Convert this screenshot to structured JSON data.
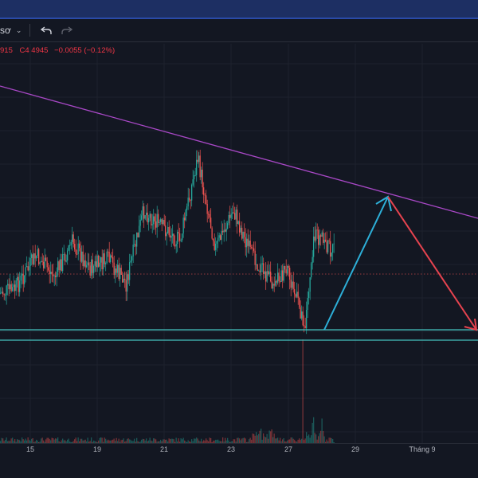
{
  "toolbar": {
    "interval_label": "sơ",
    "dropdown_icon": "chevron-down-icon",
    "undo_icon": "undo-icon",
    "redo_icon": "redo-icon"
  },
  "legend": {
    "prev_close_fragment": "915",
    "close_label": "C",
    "close_value": "4.4945",
    "change": "−0.0055 (−0.12%)",
    "color": "#f23645"
  },
  "colors": {
    "up": "#26a69a",
    "down": "#ef5350",
    "trendline": "#a948c7",
    "support": "#46c2c0",
    "arrow_up": "#2dafd8",
    "arrow_down": "#e6434f",
    "background": "#131722"
  },
  "xaxis": {
    "ticks": [
      "15",
      "19",
      "21",
      "23",
      "27",
      "29",
      "Tháng 9"
    ]
  },
  "chart_data": {
    "type": "candlestick",
    "title": "",
    "x_ticks": [
      "15",
      "19",
      "21",
      "23",
      "27",
      "29",
      "Tháng 9"
    ],
    "last_close": 4.4945,
    "change_abs": -0.0055,
    "change_pct": -0.12,
    "close_path_approx": [
      0.8,
      0.78,
      0.62,
      0.72,
      0.55,
      0.68,
      0.64,
      0.75,
      0.4,
      0.48,
      0.55,
      0.15,
      0.58,
      0.4,
      0.62,
      0.74,
      0.7,
      0.95,
      0.52,
      0.6
    ]
  }
}
